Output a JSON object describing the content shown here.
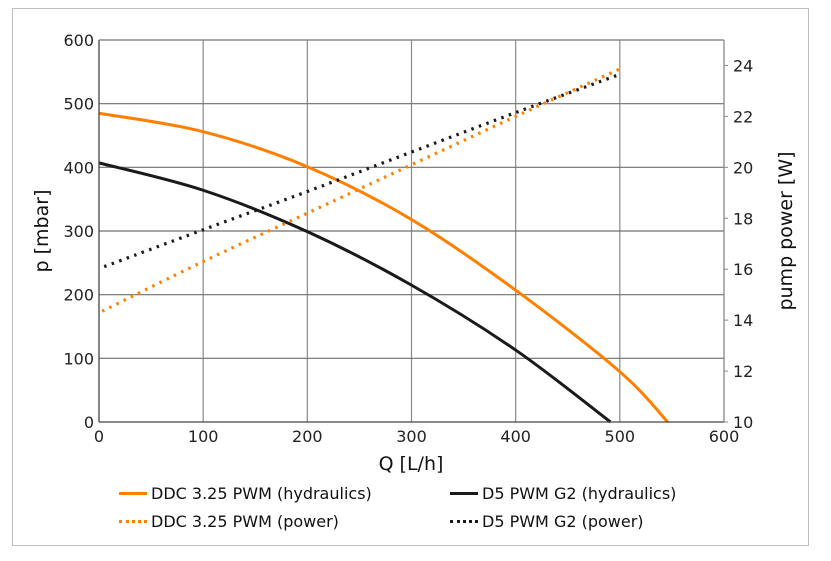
{
  "chart_data": {
    "type": "line",
    "title": "",
    "xlabel": "Q [L/h]",
    "ylabel": "p [mbar]",
    "y2label": "pump power [W]",
    "xlim": [
      0,
      600
    ],
    "ylim": [
      0,
      600
    ],
    "y2lim": [
      10,
      25
    ],
    "xticks": [
      "0",
      "100",
      "200",
      "300",
      "400",
      "500",
      "600"
    ],
    "yticks": [
      "0",
      "100",
      "200",
      "300",
      "400",
      "500",
      "600"
    ],
    "y2ticks": [
      "10",
      "12",
      "14",
      "16",
      "18",
      "20",
      "22",
      "24"
    ],
    "grid": true,
    "legend_position": "bottom",
    "series": [
      {
        "name": "DDC 3.25 PWM (hydraulics)",
        "axis": "left",
        "style": "solid",
        "color": "#ff8000",
        "x": [
          0,
          100,
          200,
          300,
          400,
          500,
          546
        ],
        "y": [
          485,
          456,
          401,
          318,
          207,
          79,
          0
        ]
      },
      {
        "name": "D5 PWM G2 (hydraulics)",
        "axis": "left",
        "style": "solid",
        "color": "#1a1a1a",
        "x": [
          0,
          100,
          200,
          300,
          400,
          491
        ],
        "y": [
          407,
          364,
          299,
          215,
          113,
          0
        ]
      },
      {
        "name": "DDC 3.25 PWM (power)",
        "axis": "right",
        "style": "dotted",
        "color": "#ff8000",
        "x": [
          3,
          100,
          200,
          300,
          400,
          502
        ],
        "y": [
          14.35,
          16.3,
          18.2,
          20.1,
          22.0,
          23.9
        ]
      },
      {
        "name": "D5 PWM G2 (power)",
        "axis": "right",
        "style": "dotted",
        "color": "#1a1a1a",
        "x": [
          5,
          100,
          200,
          300,
          400,
          500
        ],
        "y": [
          16.1,
          17.55,
          19.05,
          20.6,
          22.15,
          23.65
        ]
      }
    ]
  }
}
